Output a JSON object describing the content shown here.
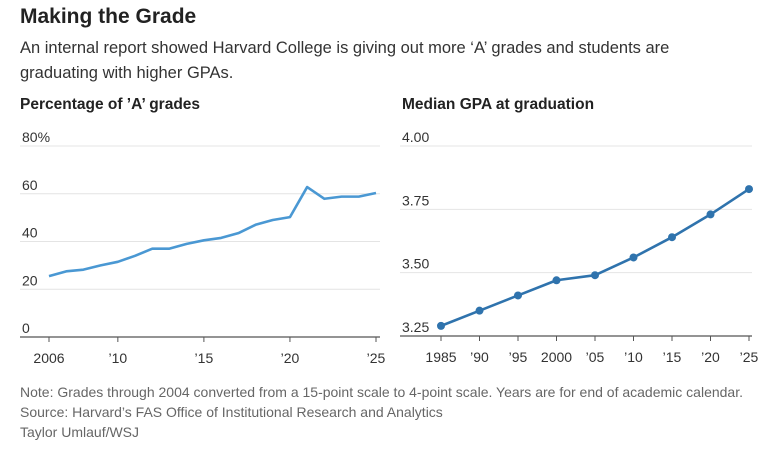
{
  "title": "Making the Grade",
  "subtitle": "An internal report showed Harvard College is giving out more ‘A’ grades and students are graduating with higher GPAs.",
  "chart_data": [
    {
      "type": "line",
      "title": "Percentage of ’A’ grades",
      "x": [
        2006,
        2007,
        2008,
        2009,
        2010,
        2011,
        2012,
        2013,
        2014,
        2015,
        2016,
        2017,
        2018,
        2019,
        2020,
        2021,
        2022,
        2023,
        2024,
        2025
      ],
      "values": [
        25.5,
        27.5,
        28.2,
        30,
        31.5,
        34,
        37,
        37,
        39,
        40.5,
        41.5,
        43.5,
        47,
        49,
        50.2,
        62.8,
        57.9,
        58.8,
        58.8,
        60.3
      ],
      "ylim": [
        0,
        80
      ],
      "yticks": [
        0,
        20,
        40,
        60,
        80
      ],
      "ytick_labels": [
        "0",
        "20",
        "40",
        "60",
        "80%"
      ],
      "xticks": [
        2006,
        2010,
        2015,
        2020,
        2025
      ],
      "xtick_labels": [
        "2006",
        "’10",
        "’15",
        "’20",
        "’25"
      ],
      "color": "#4a98d3",
      "grid": true
    },
    {
      "type": "line",
      "title": "Median GPA at graduation",
      "x": [
        1985,
        1990,
        1995,
        2000,
        2005,
        2010,
        2015,
        2020,
        2025
      ],
      "values": [
        3.29,
        3.35,
        3.41,
        3.47,
        3.49,
        3.56,
        3.64,
        3.73,
        3.83
      ],
      "ylim": [
        3.25,
        4.0
      ],
      "yticks": [
        3.25,
        3.5,
        3.75,
        4.0
      ],
      "ytick_labels": [
        "3.25",
        "3.50",
        "3.75",
        "4.00"
      ],
      "xticks": [
        1985,
        1990,
        1995,
        2000,
        2005,
        2010,
        2015,
        2020,
        2025
      ],
      "xtick_labels": [
        "1985",
        "’90",
        "’95",
        "2000",
        "’05",
        "’10",
        "’15",
        "’20",
        "’25"
      ],
      "color": "#2f73ad",
      "markers": true,
      "grid": true
    }
  ],
  "notes": {
    "note": "Note: Grades through 2004 converted from a 15-point scale to 4-point scale. Years are for end of academic calendar.",
    "source": "Source: Harvard’s FAS Office of Institutional Research and Analytics",
    "credit": "Taylor Umlauf/WSJ"
  }
}
